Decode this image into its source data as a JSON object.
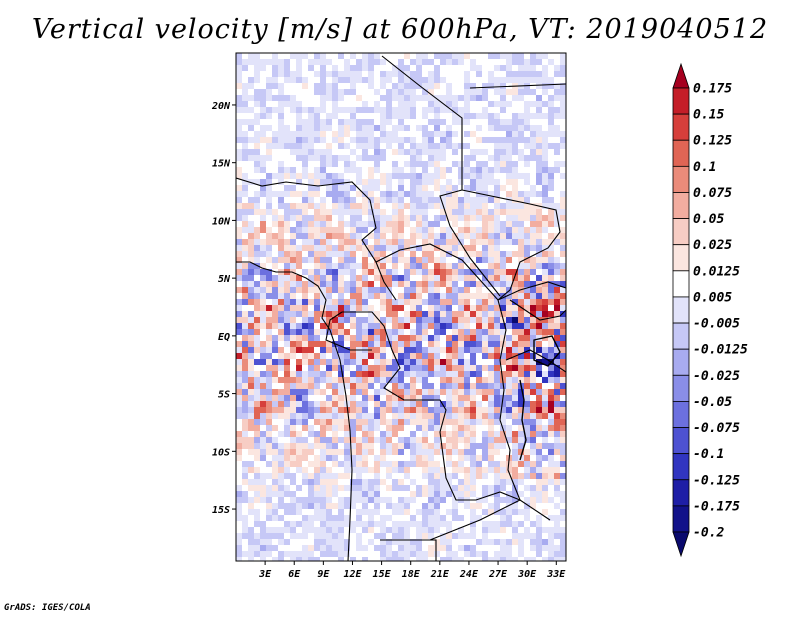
{
  "chart_data": {
    "type": "heatmap",
    "title": "Vertical velocity [m/s] at 600hPa, VT: 2019040512",
    "variable": "Vertical velocity",
    "units": "m/s",
    "level": "600hPa",
    "valid_time": "2019040512",
    "x_axis": {
      "label": "",
      "range": [
        0,
        34
      ],
      "ticks": [
        3,
        6,
        9,
        12,
        15,
        18,
        21,
        24,
        27,
        30,
        33
      ],
      "tick_labels": [
        "3E",
        "6E",
        "9E",
        "12E",
        "15E",
        "18E",
        "21E",
        "24E",
        "27E",
        "30E",
        "33E"
      ]
    },
    "y_axis": {
      "label": "",
      "range": [
        -19.5,
        24.5
      ],
      "ticks": [
        20,
        15,
        10,
        5,
        0,
        -5,
        -10,
        -15
      ],
      "tick_labels": [
        "20N",
        "15N",
        "10N",
        "5N",
        "EQ",
        "5S",
        "10S",
        "15S"
      ]
    },
    "colorbar": {
      "levels": [
        "0.175",
        "0.15",
        "0.125",
        "0.1",
        "0.075",
        "0.05",
        "0.025",
        "0.0125",
        "0.005",
        "-0.005",
        "-0.0125",
        "-0.025",
        "-0.05",
        "-0.075",
        "-0.1",
        "-0.125",
        "-0.175",
        "-0.2"
      ],
      "colors": [
        "#a5001f",
        "#c41e28",
        "#d63f3b",
        "#e06555",
        "#ea8b7a",
        "#f2ada0",
        "#f7cdc4",
        "#fbe6e0",
        "#ffffff",
        "#e2e3fa",
        "#c6c8f6",
        "#a8abf0",
        "#8a8ee8",
        "#6c70df",
        "#4e52d2",
        "#3135c0",
        "#1e1ea6",
        "#12128a",
        "#0a0a6e"
      ]
    },
    "field_summary": "Mottled red (rising) and blue (sinking) cells over central Africa; strongest updrafts near Congo basin and East African lakes."
  },
  "credit": "GrADS: IGES/COLA"
}
